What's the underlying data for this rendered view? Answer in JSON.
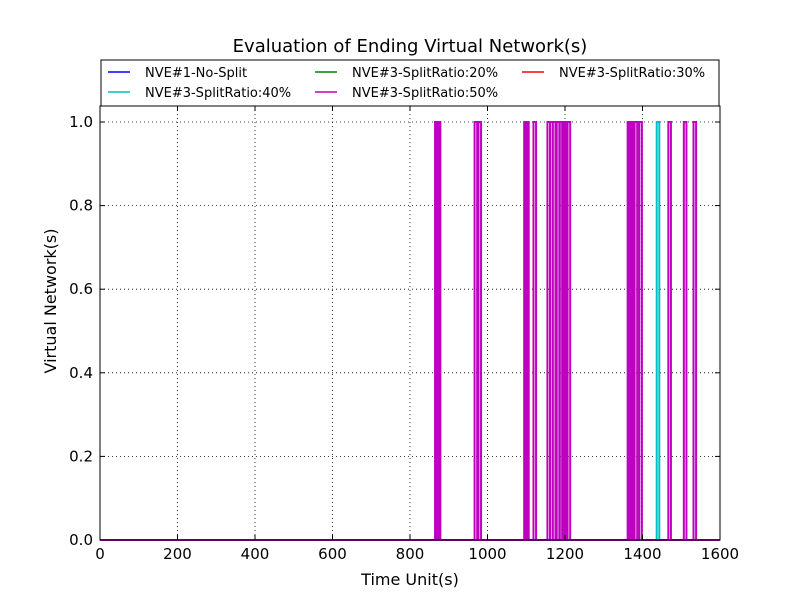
{
  "chart_data": {
    "type": "line",
    "title": "Evaluation of Ending Virtual Network(s)",
    "xlabel": "Time Unit(s)",
    "ylabel": "Virtual Network(s)",
    "xlim": [
      0,
      1600
    ],
    "ylim": [
      0.0,
      1.0
    ],
    "xticks": [
      "0",
      "200",
      "400",
      "600",
      "800",
      "1000",
      "1200",
      "1400",
      "1600"
    ],
    "yticks": [
      "0.0",
      "0.2",
      "0.4",
      "0.6",
      "0.8",
      "1.0"
    ],
    "grid": true,
    "legend_position": "top",
    "series": [
      {
        "name": "NVE#1-No-Split",
        "color": "#0000ff",
        "spikes": []
      },
      {
        "name": "NVE#3-SplitRatio:20%",
        "color": "#008000",
        "spikes": []
      },
      {
        "name": "NVE#3-SplitRatio:30%",
        "color": "#ff0000",
        "spikes": []
      },
      {
        "name": "NVE#3-SplitRatio:40%",
        "color": "#00bfbf",
        "spikes": [
          1440
        ]
      },
      {
        "name": "NVE#3-SplitRatio:50%",
        "color": "#bf00bf",
        "spikes": [
          868,
          872,
          875,
          970,
          980,
          1098,
          1103,
          1122,
          1158,
          1165,
          1172,
          1182,
          1190,
          1196,
          1200,
          1210,
          1365,
          1370,
          1375,
          1383,
          1395,
          1470,
          1510,
          1535
        ]
      }
    ]
  }
}
